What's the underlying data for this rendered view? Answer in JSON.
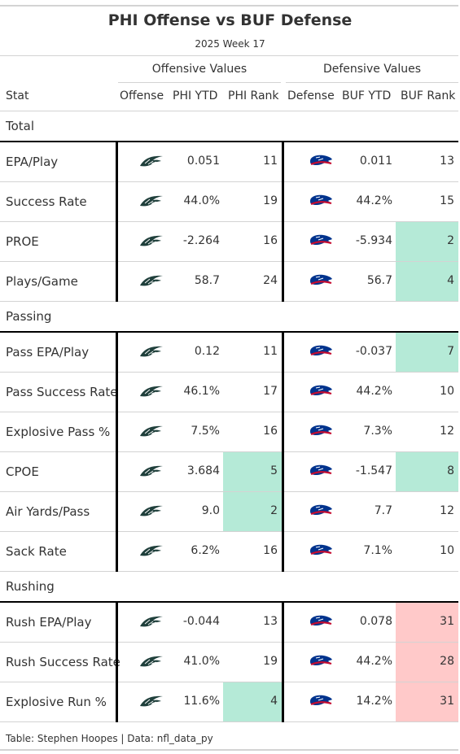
{
  "chart_data": {
    "type": "table",
    "title": "PHI Offense vs BUF Defense",
    "subtitle": "2025 Week 17",
    "spanners": {
      "offense": "Offensive Values",
      "defense": "Defensive Values"
    },
    "columns": [
      "Stat",
      "Offense",
      "PHI YTD",
      "PHI Rank",
      "Defense",
      "BUF YTD",
      "BUF Rank"
    ],
    "groups": [
      {
        "name": "Total",
        "rows": [
          {
            "stat": "EPA/Play",
            "phi_ytd": "0.051",
            "phi_rank": 11,
            "buf_ytd": "0.011",
            "buf_rank": 13
          },
          {
            "stat": "Success Rate",
            "phi_ytd": "44.0%",
            "phi_rank": 19,
            "buf_ytd": "44.2%",
            "buf_rank": 15
          },
          {
            "stat": "PROE",
            "phi_ytd": "-2.264",
            "phi_rank": 16,
            "buf_ytd": "-5.934",
            "buf_rank": 2
          },
          {
            "stat": "Plays/Game",
            "phi_ytd": "58.7",
            "phi_rank": 24,
            "buf_ytd": "56.7",
            "buf_rank": 4
          }
        ]
      },
      {
        "name": "Passing",
        "rows": [
          {
            "stat": "Pass EPA/Play",
            "phi_ytd": "0.12",
            "phi_rank": 11,
            "buf_ytd": "-0.037",
            "buf_rank": 7
          },
          {
            "stat": "Pass Success Rate",
            "phi_ytd": "46.1%",
            "phi_rank": 17,
            "buf_ytd": "44.2%",
            "buf_rank": 10
          },
          {
            "stat": "Explosive Pass %",
            "phi_ytd": "7.5%",
            "phi_rank": 16,
            "buf_ytd": "7.3%",
            "buf_rank": 12
          },
          {
            "stat": "CPOE",
            "phi_ytd": "3.684",
            "phi_rank": 5,
            "buf_ytd": "-1.547",
            "buf_rank": 8
          },
          {
            "stat": "Air Yards/Pass",
            "phi_ytd": "9.0",
            "phi_rank": 2,
            "buf_ytd": "7.7",
            "buf_rank": 12
          },
          {
            "stat": "Sack Rate",
            "phi_ytd": "6.2%",
            "phi_rank": 16,
            "buf_ytd": "7.1%",
            "buf_rank": 10
          }
        ]
      },
      {
        "name": "Rushing",
        "rows": [
          {
            "stat": "Rush EPA/Play",
            "phi_ytd": "-0.044",
            "phi_rank": 13,
            "buf_ytd": "0.078",
            "buf_rank": 31
          },
          {
            "stat": "Rush Success Rate",
            "phi_ytd": "41.0%",
            "phi_rank": 19,
            "buf_ytd": "44.2%",
            "buf_rank": 28
          },
          {
            "stat": "Explosive Run %",
            "phi_ytd": "11.6%",
            "phi_rank": 4,
            "buf_ytd": "14.2%",
            "buf_rank": 31
          }
        ]
      }
    ],
    "rank_highlight": {
      "good": "#b5ead7",
      "bad": "#ffc9c9",
      "good_max_rank": 8,
      "bad_min_rank": 25
    },
    "footer": "Table: Stephen Hoopes | Data: nfl_data_py"
  },
  "icons": {
    "offense": "eagles-logo-icon",
    "defense": "bills-logo-icon"
  },
  "colors": {
    "eagles": "#1f3f3b",
    "bills_blue": "#00338d",
    "bills_red": "#c60c30"
  }
}
